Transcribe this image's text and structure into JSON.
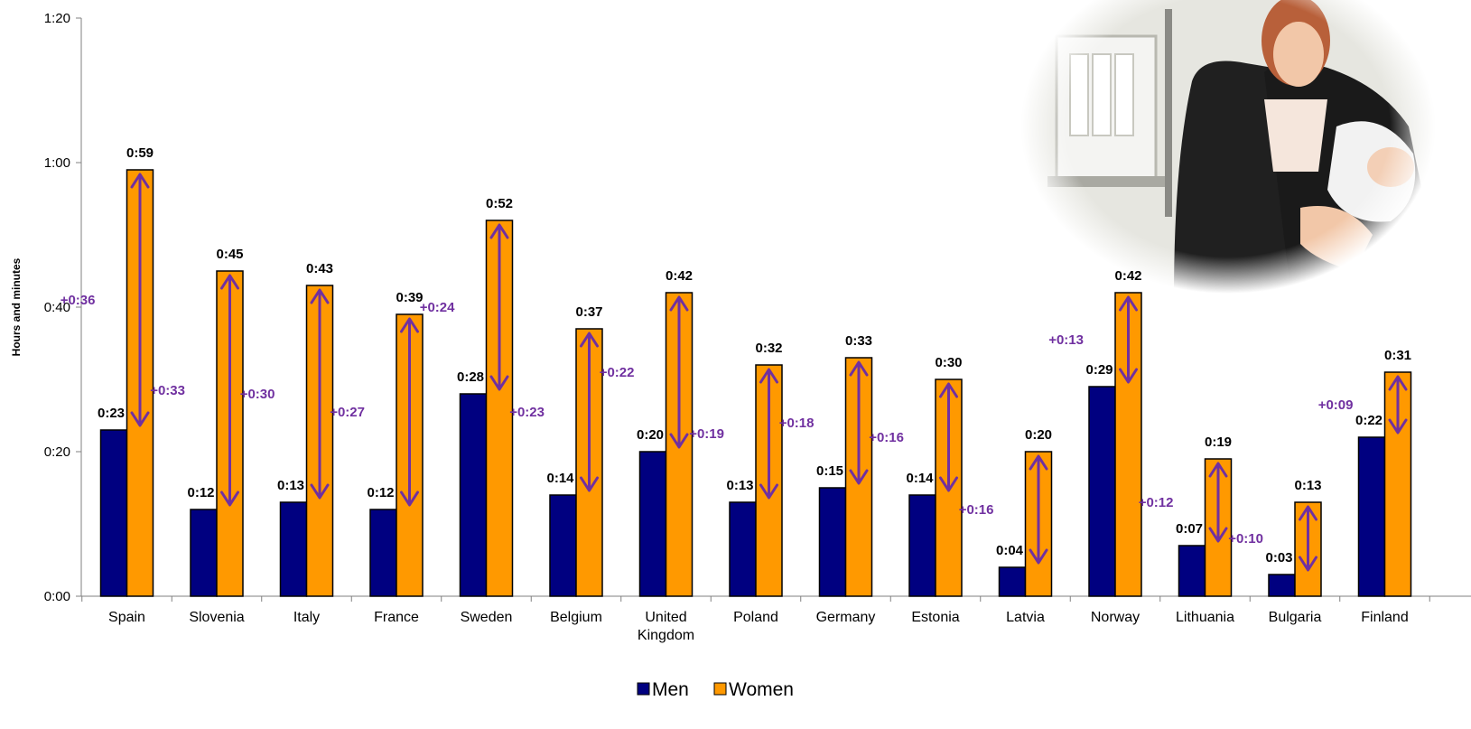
{
  "chart_data": {
    "type": "bar",
    "ylabel": "Hours and minutes",
    "ylim_minutes": [
      0,
      80
    ],
    "yticks": [
      "0:00",
      "0:20",
      "0:40",
      "1:00",
      "1:20"
    ],
    "categories": [
      "Spain",
      "Slovenia",
      "Italy",
      "France",
      "Sweden",
      "Belgium",
      "United Kingdom",
      "Poland",
      "Germany",
      "Estonia",
      "Latvia",
      "Norway",
      "Lithuania",
      "Bulgaria",
      "Finland"
    ],
    "category_labels": [
      [
        "Spain"
      ],
      [
        "Slovenia"
      ],
      [
        "Italy"
      ],
      [
        "France"
      ],
      [
        "Sweden"
      ],
      [
        "Belgium"
      ],
      [
        "United",
        "Kingdom"
      ],
      [
        "Poland"
      ],
      [
        "Germany"
      ],
      [
        "Estonia"
      ],
      [
        "Latvia"
      ],
      [
        "Norway"
      ],
      [
        "Lithuania"
      ],
      [
        "Bulgaria"
      ],
      [
        "Finland"
      ]
    ],
    "series": [
      {
        "name": "Men",
        "color": "#000080",
        "values": [
          23,
          12,
          13,
          12,
          28,
          14,
          20,
          13,
          15,
          14,
          4,
          29,
          7,
          3,
          22
        ],
        "labels": [
          "0:23",
          "0:12",
          "0:13",
          "0:12",
          "0:28",
          "0:14",
          "0:20",
          "0:13",
          "0:15",
          "0:14",
          "0:04",
          "0:29",
          "0:07",
          "0:03",
          "0:22"
        ]
      },
      {
        "name": "Women",
        "color": "#FF9900",
        "values": [
          59,
          45,
          43,
          39,
          52,
          37,
          42,
          32,
          33,
          30,
          20,
          42,
          19,
          13,
          31
        ],
        "labels": [
          "0:59",
          "0:45",
          "0:43",
          "0:39",
          "0:52",
          "0:37",
          "0:42",
          "0:32",
          "0:33",
          "0:30",
          "0:20",
          "0:42",
          "0:19",
          "0:13",
          "0:31"
        ]
      }
    ],
    "differences": [
      "+0:36",
      "+0:33",
      "+0:30",
      "+0:27",
      "+0:24",
      "+0:23",
      "+0:22",
      "+0:19",
      "+0:18",
      "+0:16",
      "+0:16",
      "+0:13",
      "+0:12",
      "+0:10",
      "+0:09"
    ],
    "difference_color": "#7030A0",
    "legend": {
      "position": "bottom",
      "entries": [
        "Men",
        "Women"
      ]
    },
    "grid": false,
    "photo": "office-woman-with-baby"
  }
}
